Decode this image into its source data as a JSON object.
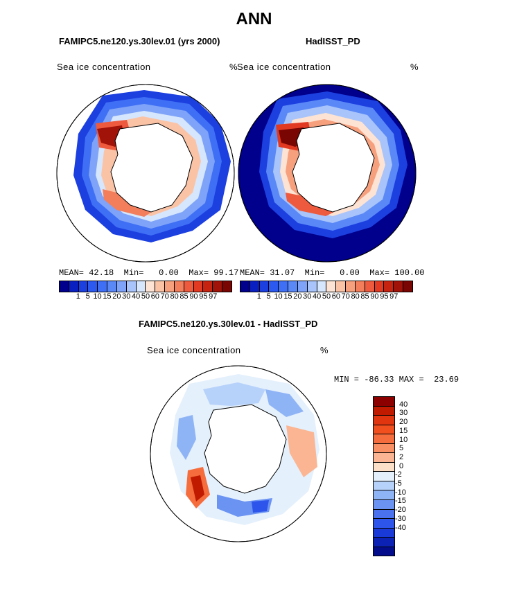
{
  "title": "ANN",
  "panels": [
    {
      "id": "model",
      "case_title": "FAMIPC5.ne120.ys.30lev.01 (yrs 2000)",
      "variable": "Sea ice concentration",
      "units": "%",
      "stats": {
        "mean_label": "MEAN=",
        "mean": "42.18",
        "min_label": "Min=",
        "min": "0.00",
        "max_label": "Max=",
        "max": "99.17"
      }
    },
    {
      "id": "obs",
      "case_title": "HadISST_PD",
      "variable": "Sea ice concentration",
      "units": "%",
      "stats": {
        "mean_label": "MEAN=",
        "mean": "31.07",
        "min_label": "Min=",
        "min": "0.00",
        "max_label": "Max=",
        "max": "100.00"
      }
    }
  ],
  "abs_colorbar": {
    "colors": [
      "#00008c",
      "#0a1fbf",
      "#1c3fe0",
      "#2c59f0",
      "#3f6ff5",
      "#5a88f7",
      "#7ea3f8",
      "#a8c4fa",
      "#d6e6fc",
      "#fde3d3",
      "#fbc3a6",
      "#f7a07e",
      "#f27e5c",
      "#ee5a3d",
      "#e23a22",
      "#c62310",
      "#a11208",
      "#7a0603"
    ],
    "tick_labels": [
      "1",
      "5",
      "10",
      "15",
      "20",
      "30",
      "40",
      "50",
      "60",
      "70",
      "80",
      "85",
      "90",
      "95",
      "97"
    ]
  },
  "diff_panel": {
    "title": "FAMIPC5.ne120.ys.30lev.01 - HadISST_PD",
    "variable": "Sea ice concentration",
    "units": "%",
    "min_label": "MIN =",
    "min": "-86.33",
    "max_label": "MAX =",
    "max": "23.69",
    "colorbar": {
      "colors": [
        "#8c0000",
        "#c01a00",
        "#e0350f",
        "#f24f1e",
        "#f56d3d",
        "#f89064",
        "#fbb592",
        "#fde0c8",
        "#e4f0fc",
        "#b7d2fa",
        "#8fb4f6",
        "#6a93f2",
        "#4a72ef",
        "#2e55eb",
        "#1a3ad8",
        "#0c22b4",
        "#030d8c"
      ],
      "labels": [
        "40",
        "30",
        "20",
        "15",
        "10",
        "5",
        "2",
        "0",
        "-2",
        "-5",
        "-10",
        "-15",
        "-20",
        "-30",
        "-40"
      ]
    }
  }
}
